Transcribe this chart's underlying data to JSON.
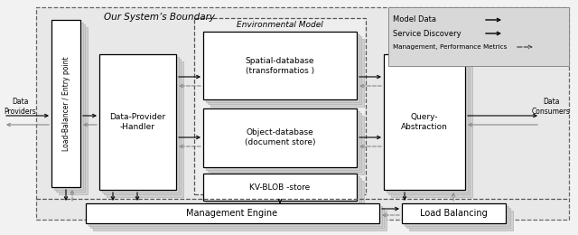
{
  "title": "Our System’s Boundary",
  "bg_color": "#ebebeb",
  "legend_items": [
    {
      "label": "Model Data",
      "style": "solid"
    },
    {
      "label": "Service Discovery",
      "style": "solid"
    },
    {
      "label": "Management, Performance Metrics",
      "style": "dashed"
    }
  ]
}
